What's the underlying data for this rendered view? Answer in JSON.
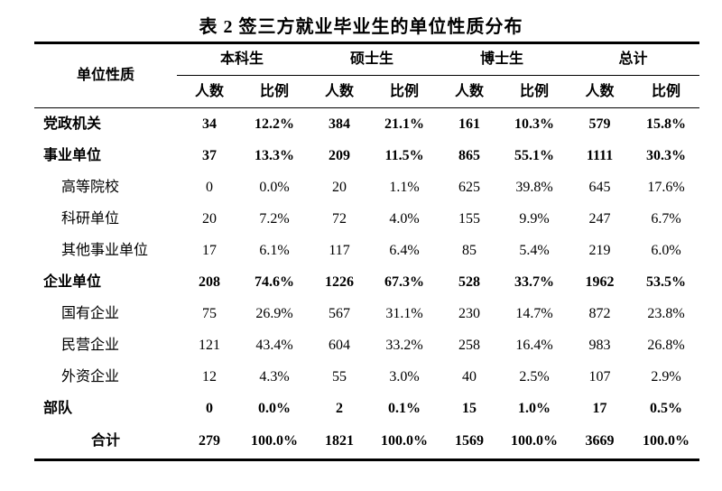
{
  "title": "表 2 签三方就业毕业生的单位性质分布",
  "table": {
    "row_header_label": "单位性质",
    "groups": [
      {
        "label": "本科生"
      },
      {
        "label": "硕士生"
      },
      {
        "label": "博士生"
      },
      {
        "label": "总计"
      }
    ],
    "sub_headers": {
      "count": "人数",
      "ratio": "比例"
    },
    "rows": [
      {
        "label": "党政机关",
        "style": "bold",
        "values": [
          "34",
          "12.2%",
          "384",
          "21.1%",
          "161",
          "10.3%",
          "579",
          "15.8%"
        ]
      },
      {
        "label": "事业单位",
        "style": "bold",
        "values": [
          "37",
          "13.3%",
          "209",
          "11.5%",
          "865",
          "55.1%",
          "1111",
          "30.3%"
        ]
      },
      {
        "label": "高等院校",
        "style": "sub",
        "values": [
          "0",
          "0.0%",
          "20",
          "1.1%",
          "625",
          "39.8%",
          "645",
          "17.6%"
        ]
      },
      {
        "label": "科研单位",
        "style": "sub",
        "values": [
          "20",
          "7.2%",
          "72",
          "4.0%",
          "155",
          "9.9%",
          "247",
          "6.7%"
        ]
      },
      {
        "label": "其他事业单位",
        "style": "sub",
        "values": [
          "17",
          "6.1%",
          "117",
          "6.4%",
          "85",
          "5.4%",
          "219",
          "6.0%"
        ]
      },
      {
        "label": "企业单位",
        "style": "bold",
        "values": [
          "208",
          "74.6%",
          "1226",
          "67.3%",
          "528",
          "33.7%",
          "1962",
          "53.5%"
        ]
      },
      {
        "label": "国有企业",
        "style": "sub",
        "values": [
          "75",
          "26.9%",
          "567",
          "31.1%",
          "230",
          "14.7%",
          "872",
          "23.8%"
        ]
      },
      {
        "label": "民营企业",
        "style": "sub",
        "values": [
          "121",
          "43.4%",
          "604",
          "33.2%",
          "258",
          "16.4%",
          "983",
          "26.8%"
        ]
      },
      {
        "label": "外资企业",
        "style": "sub",
        "values": [
          "12",
          "4.3%",
          "55",
          "3.0%",
          "40",
          "2.5%",
          "107",
          "2.9%"
        ]
      },
      {
        "label": "部队",
        "style": "bold",
        "values": [
          "0",
          "0.0%",
          "2",
          "0.1%",
          "15",
          "1.0%",
          "17",
          "0.5%"
        ]
      },
      {
        "label": "合计",
        "style": "total",
        "values": [
          "279",
          "100.0%",
          "1821",
          "100.0%",
          "1569",
          "100.0%",
          "3669",
          "100.0%"
        ]
      }
    ]
  }
}
